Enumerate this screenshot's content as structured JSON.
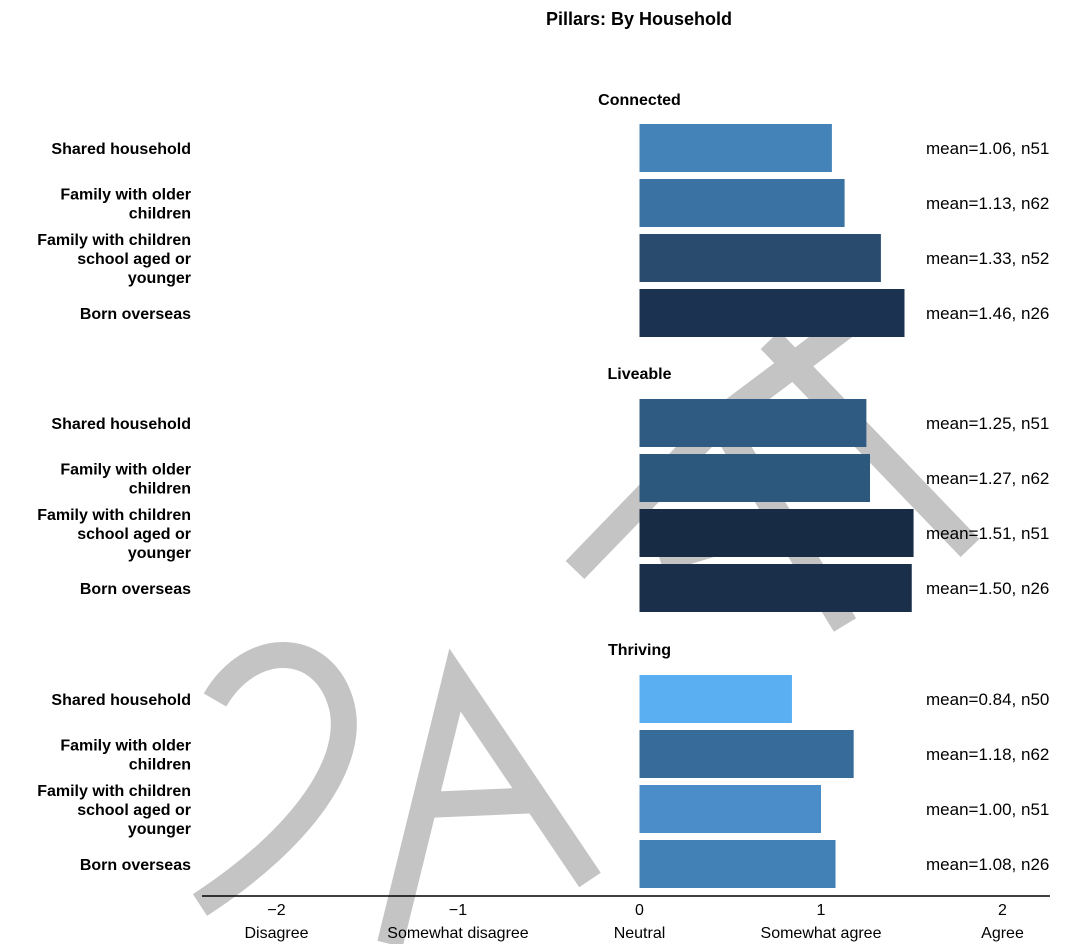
{
  "chart_data": {
    "type": "bar",
    "orientation": "horizontal",
    "title": "Pillars: By Household",
    "xlim": [
      -2.4,
      2.4
    ],
    "xticks": [
      {
        "value": -2,
        "number": "−2",
        "label": "Disagree"
      },
      {
        "value": -1,
        "number": "−1",
        "label": "Somewhat disagree"
      },
      {
        "value": 0,
        "number": "0",
        "label": "Neutral"
      },
      {
        "value": 1,
        "number": "1",
        "label": "Somewhat agree"
      },
      {
        "value": 2,
        "number": "2",
        "label": "Agree"
      }
    ],
    "groups": [
      {
        "name": "Connected",
        "bars": [
          {
            "category": [
              "Shared household"
            ],
            "value": 1.06,
            "annotation": "mean=1.06, n51",
            "color": "#4383b8"
          },
          {
            "category": [
              "Family with older",
              "children"
            ],
            "value": 1.13,
            "annotation": "mean=1.13, n62",
            "color": "#3a72a3"
          },
          {
            "category": [
              "Family with children",
              "school aged or",
              "younger"
            ],
            "value": 1.33,
            "annotation": "mean=1.33, n52",
            "color": "#284b6e"
          },
          {
            "category": [
              "Born overseas"
            ],
            "value": 1.46,
            "annotation": "mean=1.46, n26",
            "color": "#1b3350"
          }
        ]
      },
      {
        "name": "Liveable",
        "bars": [
          {
            "category": [
              "Shared household"
            ],
            "value": 1.25,
            "annotation": "mean=1.25, n51",
            "color": "#2f5b82"
          },
          {
            "category": [
              "Family with older",
              "children"
            ],
            "value": 1.27,
            "annotation": "mean=1.27, n62",
            "color": "#2d587e"
          },
          {
            "category": [
              "Family with children",
              "school aged or",
              "younger"
            ],
            "value": 1.51,
            "annotation": "mean=1.51, n51",
            "color": "#172b45"
          },
          {
            "category": [
              "Born overseas"
            ],
            "value": 1.5,
            "annotation": "mean=1.50, n26",
            "color": "#1a2f4a"
          }
        ]
      },
      {
        "name": "Thriving",
        "bars": [
          {
            "category": [
              "Shared household"
            ],
            "value": 0.84,
            "annotation": "mean=0.84, n50",
            "color": "#5aaff2"
          },
          {
            "category": [
              "Family with older",
              "children"
            ],
            "value": 1.18,
            "annotation": "mean=1.18, n62",
            "color": "#376b9a"
          },
          {
            "category": [
              "Family with children",
              "school aged or",
              "younger"
            ],
            "value": 1.0,
            "annotation": "mean=1.00, n51",
            "color": "#4a8dc9"
          },
          {
            "category": [
              "Born overseas"
            ],
            "value": 1.08,
            "annotation": "mean=1.08, n26",
            "color": "#4181b6"
          }
        ]
      }
    ],
    "watermark": "DRAFT",
    "grid": false,
    "legend": "none"
  }
}
